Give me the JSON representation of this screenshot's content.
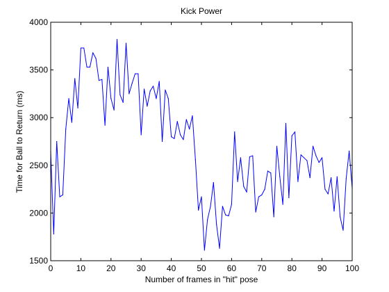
{
  "chart_data": {
    "type": "line",
    "title": "Kick Power",
    "xlabel": "Number of frames in \"hit\" pose",
    "ylabel": "Time for Ball to Return (ms)",
    "xlim": [
      0,
      100
    ],
    "ylim": [
      1500,
      4000
    ],
    "x_ticks": [
      0,
      10,
      20,
      30,
      40,
      50,
      60,
      70,
      80,
      90,
      100
    ],
    "y_ticks": [
      1500,
      2000,
      2500,
      3000,
      3500,
      4000
    ],
    "grid": false,
    "series": [
      {
        "color": "#0000ff",
        "x": [
          0,
          1,
          2,
          3,
          4,
          5,
          6,
          7,
          8,
          9,
          10,
          11,
          12,
          13,
          14,
          15,
          16,
          17,
          18,
          19,
          20,
          21,
          22,
          23,
          24,
          25,
          26,
          27,
          28,
          29,
          30,
          31,
          32,
          33,
          34,
          35,
          36,
          37,
          38,
          39,
          40,
          41,
          42,
          43,
          44,
          45,
          46,
          47,
          48,
          49,
          50,
          51,
          52,
          53,
          54,
          55,
          56,
          57,
          58,
          59,
          60,
          61,
          62,
          63,
          64,
          65,
          66,
          67,
          68,
          69,
          70,
          71,
          72,
          73,
          74,
          75,
          76,
          77,
          78,
          79,
          80,
          81,
          82,
          83,
          84,
          85,
          86,
          87,
          88,
          89,
          90,
          91,
          92,
          93,
          94,
          95,
          96,
          97,
          98,
          99,
          100
        ],
        "values": [
          2640,
          1780,
          2750,
          2170,
          2190,
          2880,
          3200,
          2950,
          3410,
          3100,
          3730,
          3730,
          3530,
          3530,
          3680,
          3620,
          3390,
          3400,
          2920,
          3530,
          3200,
          3080,
          3820,
          3240,
          3160,
          3780,
          3250,
          3360,
          3460,
          3460,
          2820,
          3300,
          3120,
          3280,
          3330,
          3200,
          3380,
          2750,
          3290,
          3200,
          2800,
          2780,
          2960,
          2820,
          2770,
          2980,
          2880,
          3020,
          2560,
          2030,
          2170,
          1610,
          1930,
          2070,
          2320,
          1880,
          1630,
          2070,
          1980,
          1970,
          2090,
          2850,
          2330,
          2580,
          2280,
          2220,
          2590,
          2600,
          2010,
          2170,
          2190,
          2250,
          2440,
          2420,
          1960,
          2700,
          2380,
          2090,
          2940,
          2160,
          2810,
          2850,
          2330,
          2610,
          2580,
          2550,
          2370,
          2700,
          2600,
          2530,
          2580,
          2250,
          2200,
          2370,
          2020,
          2380,
          1960,
          1820,
          2360,
          2650,
          2260
        ]
      }
    ]
  }
}
